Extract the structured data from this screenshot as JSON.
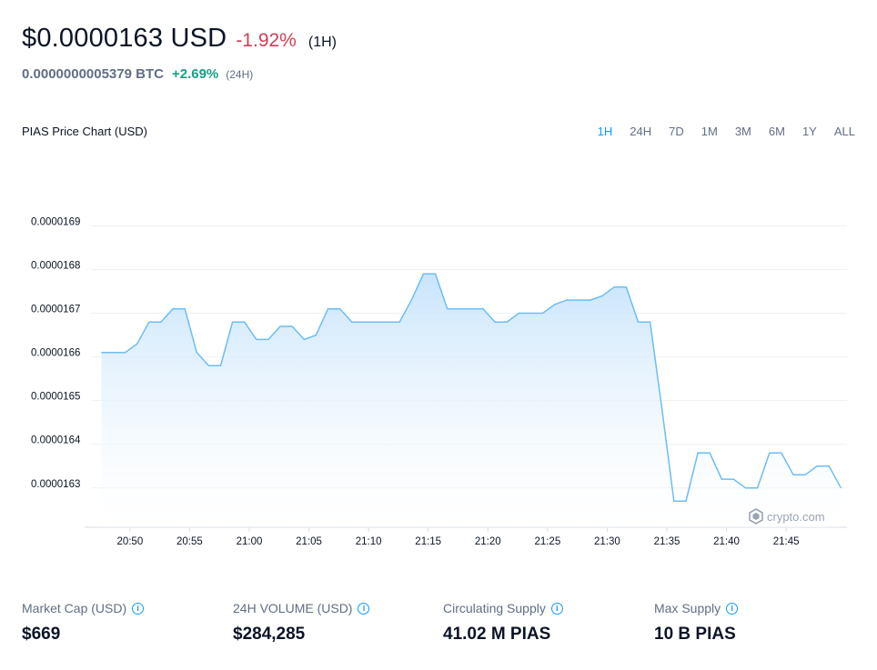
{
  "header": {
    "price": "$0.0000163 USD",
    "change": "-1.92%",
    "period": "(1H)",
    "btc_price": "0.0000000005379 BTC",
    "btc_change": "+2.69%",
    "btc_period": "(24H)"
  },
  "chart_title": "PIAS Price Chart (USD)",
  "ranges": [
    "1H",
    "24H",
    "7D",
    "1M",
    "3M",
    "6M",
    "1Y",
    "ALL"
  ],
  "active_range": "1H",
  "watermark": "crypto.com",
  "colors": {
    "line": "#6cbdf5",
    "fill_top": "#c5e3fb",
    "negative": "#cf3e55",
    "positive": "#16a085",
    "accent": "#1199fa"
  },
  "stats": [
    {
      "label": "Market Cap (USD)",
      "value": "$669"
    },
    {
      "label": "24H VOLUME (USD)",
      "value": "$284,285"
    },
    {
      "label": "Circulating Supply",
      "value": "41.02 M PIAS"
    },
    {
      "label": "Max Supply",
      "value": "10 B PIAS"
    }
  ],
  "chart_data": {
    "type": "area",
    "title": "PIAS Price Chart (USD)",
    "xlabel": "",
    "ylabel": "",
    "y_ticks": [
      "0.0000169",
      "0.0000168",
      "0.0000167",
      "0.0000166",
      "0.0000165",
      "0.0000164",
      "0.0000163"
    ],
    "ylim": [
      1.621e-05,
      1.698e-05
    ],
    "x_ticks": [
      "20:50",
      "20:55",
      "21:00",
      "21:05",
      "21:10",
      "21:15",
      "21:20",
      "21:25",
      "21:30",
      "21:35",
      "21:40",
      "21:45"
    ],
    "xlim": [
      20.8,
      81.5
    ],
    "grid": true,
    "series": [
      {
        "x": [
          19.0,
          20.0,
          21.0,
          22.0,
          23.0,
          24.0,
          25.0,
          26.0,
          27.0,
          28.0,
          29.0,
          30.0,
          31.0,
          32.0,
          33.0,
          34.0,
          35.0,
          36.0,
          37.0,
          38.0,
          39.0,
          40.0,
          41.0,
          42.0,
          43.0,
          44.0,
          45.0,
          46.0,
          47.0,
          48.0,
          49.0,
          50.0,
          51.0,
          52.0,
          53.0,
          54.0,
          55.0,
          56.0,
          57.0,
          58.0,
          59.0,
          60.0,
          61.0,
          62.0,
          63.0,
          64.0,
          65.0,
          66.0,
          67.0,
          68.0,
          69.0,
          70.0,
          71.0,
          72.0,
          73.0,
          74.0,
          75.0,
          76.0,
          77.0,
          78.0,
          79.0,
          80.0,
          81.0
        ],
        "y": [
          1.661e-05,
          1.661e-05,
          1.661e-05,
          1.663e-05,
          1.668e-05,
          1.668e-05,
          1.671e-05,
          1.671e-05,
          1.661e-05,
          1.658e-05,
          1.658e-05,
          1.668e-05,
          1.668e-05,
          1.664e-05,
          1.664e-05,
          1.667e-05,
          1.667e-05,
          1.664e-05,
          1.665e-05,
          1.671e-05,
          1.671e-05,
          1.668e-05,
          1.668e-05,
          1.668e-05,
          1.668e-05,
          1.668e-05,
          1.673e-05,
          1.679e-05,
          1.679e-05,
          1.671e-05,
          1.671e-05,
          1.671e-05,
          1.671e-05,
          1.668e-05,
          1.668e-05,
          1.67e-05,
          1.67e-05,
          1.67e-05,
          1.672e-05,
          1.673e-05,
          1.673e-05,
          1.673e-05,
          1.674e-05,
          1.676e-05,
          1.676e-05,
          1.668e-05,
          1.668e-05,
          1.648e-05,
          1.627e-05,
          1.627e-05,
          1.638e-05,
          1.638e-05,
          1.632e-05,
          1.632e-05,
          1.63e-05,
          1.63e-05,
          1.638e-05,
          1.638e-05,
          1.633e-05,
          1.633e-05,
          1.635e-05,
          1.635e-05,
          1.63e-05
        ]
      }
    ]
  }
}
